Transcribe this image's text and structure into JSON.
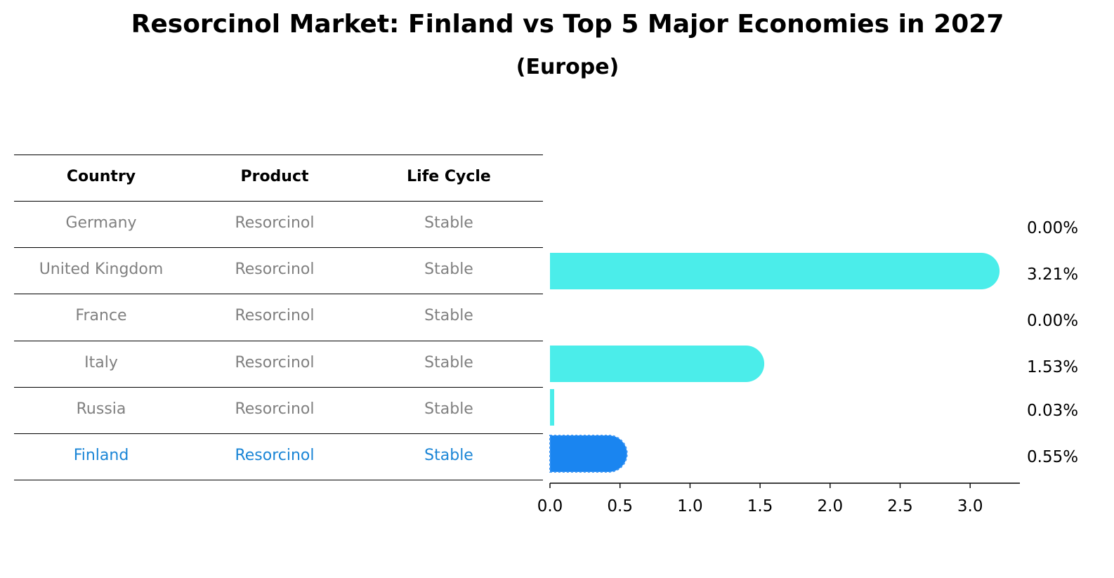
{
  "title": "Resorcinol Market: Finland vs Top 5 Major Economies in 2027",
  "subtitle": "(Europe)",
  "colors": {
    "row_text": "#808080",
    "highlight_text": "#1a85d6",
    "bar": "#4bedea",
    "highlight_bar": "#1a85f0",
    "line": "#000000"
  },
  "table": {
    "headers": [
      "Country",
      "Product",
      "Life Cycle"
    ],
    "rows": [
      {
        "country": "Germany",
        "product": "Resorcinol",
        "life_cycle": "Stable",
        "highlight": false
      },
      {
        "country": "United Kingdom",
        "product": "Resorcinol",
        "life_cycle": "Stable",
        "highlight": false
      },
      {
        "country": "France",
        "product": "Resorcinol",
        "life_cycle": "Stable",
        "highlight": false
      },
      {
        "country": "Italy",
        "product": "Resorcinol",
        "life_cycle": "Stable",
        "highlight": false
      },
      {
        "country": "Russia",
        "product": "Resorcinol",
        "life_cycle": "Stable",
        "highlight": false
      },
      {
        "country": "Finland",
        "product": "Resorcinol",
        "life_cycle": "Stable",
        "highlight": true
      }
    ]
  },
  "chart_data": {
    "type": "bar",
    "orientation": "horizontal",
    "title": "Resorcinol Market: Finland vs Top 5 Major Economies in 2027",
    "subtitle": "(Europe)",
    "categories": [
      "Germany",
      "United Kingdom",
      "France",
      "Italy",
      "Russia",
      "Finland"
    ],
    "values": [
      0.0,
      3.21,
      0.0,
      1.53,
      0.03,
      0.55
    ],
    "value_labels": [
      "0.00%",
      "3.21%",
      "0.00%",
      "1.53%",
      "0.03%",
      "0.55%"
    ],
    "highlight": "Finland",
    "xlabel": "",
    "ylabel": "",
    "xlim": [
      0,
      3.37
    ],
    "xticks": [
      0.0,
      0.5,
      1.0,
      1.5,
      2.0,
      2.5,
      3.0
    ],
    "xtick_labels": [
      "0.0",
      "0.5",
      "1.0",
      "1.5",
      "2.0",
      "2.5",
      "3.0"
    ],
    "grid": false,
    "legend": "none"
  }
}
